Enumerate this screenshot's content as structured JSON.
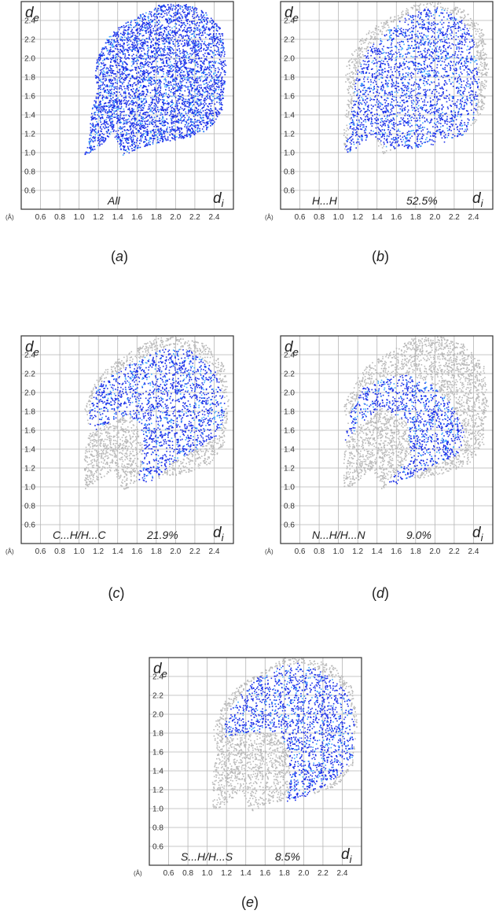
{
  "figure": {
    "x_unit": "(Å)",
    "x_label_main": "d",
    "x_label_sub": "i",
    "y_label_main": "d",
    "y_label_sub": "e"
  },
  "colors": {
    "highlight": "#1a2ee8",
    "highlight_dense": "#3aa6ff",
    "grey": "#b9b9b9",
    "grid": "#b5b5b5",
    "frame": "#333333"
  },
  "chart_data": [
    {
      "type": "scatter",
      "panel": "a",
      "caption_letter": "a",
      "contact": "All",
      "percent": "",
      "x_ticks": [
        "0.6",
        "0.8",
        "1.0",
        "1.2",
        "1.4",
        "1.6",
        "1.8",
        "2.0",
        "2.2",
        "2.4"
      ],
      "y_ticks": [
        "0.6",
        "0.8",
        "1.0",
        "1.2",
        "1.4",
        "1.6",
        "1.8",
        "2.0",
        "2.2",
        "2.4"
      ],
      "xlim": [
        0.4,
        2.6
      ],
      "ylim": [
        0.4,
        2.6
      ],
      "highlight_region": [
        [
          1.05,
          0.97
        ],
        [
          1.18,
          1.05
        ],
        [
          1.35,
          1.2
        ],
        [
          1.45,
          0.97
        ],
        [
          1.6,
          1.05
        ],
        [
          1.85,
          1.12
        ],
        [
          2.1,
          1.15
        ],
        [
          2.35,
          1.25
        ],
        [
          2.48,
          1.45
        ],
        [
          2.52,
          1.9
        ],
        [
          2.48,
          2.3
        ],
        [
          2.3,
          2.5
        ],
        [
          2.1,
          2.58
        ],
        [
          1.85,
          2.58
        ],
        [
          1.6,
          2.45
        ],
        [
          1.35,
          2.3
        ],
        [
          1.22,
          2.12
        ],
        [
          1.15,
          1.9
        ],
        [
          1.18,
          1.7
        ],
        [
          1.12,
          1.45
        ],
        [
          1.1,
          1.2
        ]
      ]
    },
    {
      "type": "scatter",
      "panel": "b",
      "caption_letter": "b",
      "contact": "H...H",
      "percent": "52.5%",
      "x_ticks": [
        "0.6",
        "0.8",
        "1.0",
        "1.2",
        "1.4",
        "1.6",
        "1.8",
        "2.0",
        "2.2",
        "2.4"
      ],
      "y_ticks": [
        "0.6",
        "0.8",
        "1.0",
        "1.2",
        "1.4",
        "1.6",
        "1.8",
        "2.0",
        "2.2",
        "2.4"
      ],
      "xlim": [
        0.4,
        2.6
      ],
      "ylim": [
        0.4,
        2.6
      ],
      "highlight_region": [
        [
          1.05,
          0.97
        ],
        [
          1.2,
          1.07
        ],
        [
          1.35,
          1.2
        ],
        [
          1.5,
          1.05
        ],
        [
          1.75,
          1.05
        ],
        [
          2.05,
          1.1
        ],
        [
          2.3,
          1.2
        ],
        [
          2.42,
          1.4
        ],
        [
          2.45,
          1.8
        ],
        [
          2.4,
          2.2
        ],
        [
          2.25,
          2.45
        ],
        [
          2.0,
          2.55
        ],
        [
          1.75,
          2.5
        ],
        [
          1.5,
          2.3
        ],
        [
          1.3,
          2.1
        ],
        [
          1.18,
          1.85
        ],
        [
          1.15,
          1.55
        ],
        [
          1.1,
          1.25
        ]
      ]
    },
    {
      "type": "scatter",
      "panel": "c",
      "caption_letter": "c",
      "contact": "C...H/H...C",
      "percent": "21.9%",
      "x_ticks": [
        "0.6",
        "0.8",
        "1.0",
        "1.2",
        "1.4",
        "1.6",
        "1.8",
        "2.0",
        "2.2",
        "2.4"
      ],
      "y_ticks": [
        "0.6",
        "0.8",
        "1.0",
        "1.2",
        "1.4",
        "1.6",
        "1.8",
        "2.0",
        "2.2",
        "2.4"
      ],
      "xlim": [
        0.4,
        2.6
      ],
      "ylim": [
        0.4,
        2.6
      ],
      "highlight_region": [
        [
          1.1,
          1.57
        ],
        [
          1.3,
          1.68
        ],
        [
          1.5,
          1.78
        ],
        [
          1.65,
          1.6
        ],
        [
          1.65,
          1.3
        ],
        [
          1.6,
          1.05
        ],
        [
          1.75,
          1.05
        ],
        [
          1.95,
          1.25
        ],
        [
          2.2,
          1.4
        ],
        [
          2.45,
          1.55
        ],
        [
          2.52,
          1.9
        ],
        [
          2.4,
          2.25
        ],
        [
          2.15,
          2.45
        ],
        [
          1.9,
          2.48
        ],
        [
          1.6,
          2.35
        ],
        [
          1.35,
          2.2
        ],
        [
          1.15,
          2.05
        ],
        [
          1.1,
          1.8
        ]
      ]
    },
    {
      "type": "scatter",
      "panel": "d",
      "caption_letter": "d",
      "contact": "N...H/H...N",
      "percent": "9.0%",
      "x_ticks": [
        "0.6",
        "0.8",
        "1.0",
        "1.2",
        "1.4",
        "1.6",
        "1.8",
        "2.0",
        "2.2",
        "2.4"
      ],
      "y_ticks": [
        "0.6",
        "0.8",
        "1.0",
        "1.2",
        "1.4",
        "1.6",
        "1.8",
        "2.0",
        "2.2",
        "2.4"
      ],
      "xlim": [
        0.4,
        2.6
      ],
      "ylim": [
        0.4,
        2.6
      ],
      "highlight_region": [
        [
          1.05,
          1.45
        ],
        [
          1.25,
          1.7
        ],
        [
          1.45,
          1.85
        ],
        [
          1.7,
          1.7
        ],
        [
          1.75,
          1.35
        ],
        [
          1.45,
          0.97
        ],
        [
          1.7,
          1.08
        ],
        [
          2.0,
          1.25
        ],
        [
          2.25,
          1.35
        ],
        [
          2.3,
          1.6
        ],
        [
          2.15,
          1.9
        ],
        [
          1.95,
          2.1
        ],
        [
          1.7,
          2.2
        ],
        [
          1.45,
          2.15
        ],
        [
          1.25,
          2.05
        ],
        [
          1.12,
          1.8
        ]
      ]
    },
    {
      "type": "scatter",
      "panel": "e",
      "caption_letter": "e",
      "contact": "S...H/H...S",
      "percent": "8.5%",
      "x_ticks": [
        "0.6",
        "0.8",
        "1.0",
        "1.2",
        "1.4",
        "1.6",
        "1.8",
        "2.0",
        "2.2",
        "2.4"
      ],
      "y_ticks": [
        "0.6",
        "0.8",
        "1.0",
        "1.2",
        "1.4",
        "1.6",
        "1.8",
        "2.0",
        "2.2",
        "2.4"
      ],
      "xlim": [
        0.4,
        2.6
      ],
      "ylim": [
        0.4,
        2.6
      ],
      "highlight_region": [
        [
          1.18,
          1.77
        ],
        [
          1.4,
          1.8
        ],
        [
          1.6,
          1.82
        ],
        [
          1.75,
          1.8
        ],
        [
          1.85,
          1.6
        ],
        [
          1.85,
          1.25
        ],
        [
          1.8,
          1.05
        ],
        [
          2.05,
          1.15
        ],
        [
          2.3,
          1.3
        ],
        [
          2.5,
          1.5
        ],
        [
          2.52,
          1.95
        ],
        [
          2.45,
          2.25
        ],
        [
          2.2,
          2.45
        ],
        [
          1.95,
          2.55
        ],
        [
          1.7,
          2.5
        ],
        [
          1.45,
          2.35
        ],
        [
          1.25,
          2.1
        ],
        [
          1.18,
          1.9
        ]
      ]
    }
  ]
}
